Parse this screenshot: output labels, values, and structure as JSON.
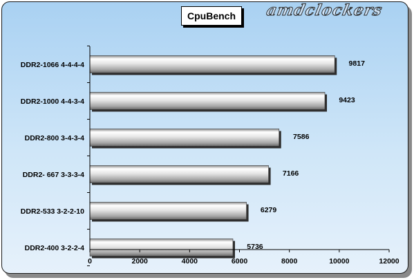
{
  "chart_data": {
    "type": "bar",
    "orientation": "horizontal",
    "title": "CpuBench",
    "watermark": "amdclockers",
    "categories": [
      "DDR2-1066 4-4-4-4",
      "DDR2-1000 4-4-3-4",
      "DDR2-800 3-4-3-4",
      "DDR2- 667 3-3-3-4",
      "DDR2-533 3-2-2-10",
      "DDR2-400 3-2-2-4"
    ],
    "values": [
      9817,
      9423,
      7586,
      7166,
      6279,
      5736
    ],
    "value_labels": [
      "9817",
      "9423",
      "7586",
      "7166",
      "6279",
      "5736"
    ],
    "xlim": [
      0,
      12000
    ],
    "xticks": [
      "0",
      "2000",
      "4000",
      "6000",
      "8000",
      "10000",
      "12000"
    ],
    "xtick_values": [
      0,
      2000,
      4000,
      6000,
      8000,
      10000,
      12000
    ],
    "grid": false,
    "legend": "none",
    "colors": {
      "bar_light": "#ffffff",
      "bar_mid": "#cfcfcf",
      "bar_dark": "#7f7f7f",
      "background_top": "#a9d1f2",
      "background_bottom": "#e6f1fb"
    }
  }
}
